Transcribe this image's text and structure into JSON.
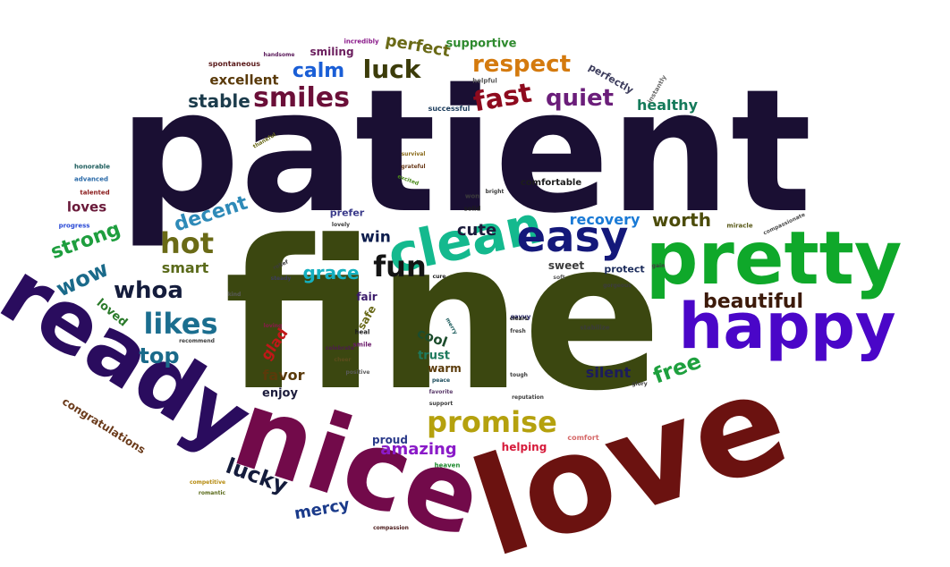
{
  "words": [
    {
      "text": "patient",
      "color": "#1a0f33"
    },
    {
      "text": "fine",
      "color": "#3b4710"
    },
    {
      "text": "love",
      "color": "#6b1210"
    },
    {
      "text": "nice",
      "color": "#720a4a"
    },
    {
      "text": "ready",
      "color": "#2a0c5e"
    },
    {
      "text": "pretty",
      "color": "#0fa82a"
    },
    {
      "text": "happy",
      "color": "#4a06c8"
    },
    {
      "text": "clean",
      "color": "#14b98e"
    },
    {
      "text": "easy",
      "color": "#14187a"
    },
    {
      "text": "fun",
      "color": "#141414"
    },
    {
      "text": "hot",
      "color": "#6a6a16"
    },
    {
      "text": "likes",
      "color": "#1b6e8f"
    },
    {
      "text": "whoa",
      "color": "#141c3c"
    },
    {
      "text": "promise",
      "color": "#b5a10e"
    },
    {
      "text": "smiles",
      "color": "#6b0f38"
    },
    {
      "text": "fast",
      "color": "#8e0a1e"
    },
    {
      "text": "quiet",
      "color": "#6b1e7a"
    },
    {
      "text": "respect",
      "color": "#d47a0e"
    },
    {
      "text": "luck",
      "color": "#3c3c0a"
    },
    {
      "text": "calm",
      "color": "#1a5ed6"
    },
    {
      "text": "perfect",
      "color": "#6a6a16"
    },
    {
      "text": "supportive",
      "color": "#2e8a2e"
    },
    {
      "text": "excellent",
      "color": "#5a3a0a"
    },
    {
      "text": "stable",
      "color": "#1c3c4c"
    },
    {
      "text": "smiling",
      "color": "#6b1e5e"
    },
    {
      "text": "healthy",
      "color": "#147a5a"
    },
    {
      "text": "perfectly",
      "color": "#3c3c5c"
    },
    {
      "text": "beautiful",
      "color": "#3c1a0a"
    },
    {
      "text": "worth",
      "color": "#4c4c0a"
    },
    {
      "text": "recovery",
      "color": "#1a7ad6"
    },
    {
      "text": "cute",
      "color": "#1c1c3c"
    },
    {
      "text": "win",
      "color": "#0c1c4c"
    },
    {
      "text": "grace",
      "color": "#14b0c0"
    },
    {
      "text": "decent",
      "color": "#2e8ab8"
    },
    {
      "text": "strong",
      "color": "#1e9e3e"
    },
    {
      "text": "wow",
      "color": "#1a6a8a"
    },
    {
      "text": "smart",
      "color": "#5a6a1a"
    },
    {
      "text": "top",
      "color": "#1a6a8a"
    },
    {
      "text": "loved",
      "color": "#2a7a2a"
    },
    {
      "text": "loves",
      "color": "#6a1a3a"
    },
    {
      "text": "free",
      "color": "#1ea03e"
    },
    {
      "text": "silent",
      "color": "#1c1c5c"
    },
    {
      "text": "lucky",
      "color": "#141c3c"
    },
    {
      "text": "mercy",
      "color": "#1a3a8a"
    },
    {
      "text": "amazing",
      "color": "#8a1ac8"
    },
    {
      "text": "glad",
      "color": "#c01818"
    },
    {
      "text": "favor",
      "color": "#5a3a0a"
    },
    {
      "text": "enjoy",
      "color": "#1c1c3c"
    },
    {
      "text": "cool",
      "color": "#1c4c2c"
    },
    {
      "text": "trust",
      "color": "#1e7a5e"
    },
    {
      "text": "warm",
      "color": "#5a3a0a"
    },
    {
      "text": "sweet",
      "color": "#3c3c3c"
    },
    {
      "text": "protect",
      "color": "#1c2c5c"
    },
    {
      "text": "congratulations",
      "color": "#6a3a1a"
    },
    {
      "text": "helping",
      "color": "#d61a3a"
    },
    {
      "text": "proud",
      "color": "#2a3a8a"
    },
    {
      "text": "comfortable",
      "color": "#1c1c1c"
    },
    {
      "text": "fair",
      "color": "#3a1a6a"
    },
    {
      "text": "safe",
      "color": "#6a6a1a"
    },
    {
      "text": "prefer",
      "color": "#3a3a8a"
    },
    {
      "text": "spontaneous",
      "color": "#5a1a1a"
    },
    {
      "text": "incredibly",
      "color": "#8a1a8a"
    },
    {
      "text": "successful",
      "color": "#1c3c5c"
    },
    {
      "text": "helpful",
      "color": "#5a5a5a"
    },
    {
      "text": "instantly",
      "color": "#6a6a6a"
    },
    {
      "text": "honorable",
      "color": "#1c5c5c"
    },
    {
      "text": "advanced",
      "color": "#2a6aa8"
    },
    {
      "text": "talented",
      "color": "#8a1a1a"
    },
    {
      "text": "progress",
      "color": "#2a4ad6"
    },
    {
      "text": "handsome",
      "color": "#5a1a5a"
    },
    {
      "text": "thankful",
      "color": "#6a6a1a"
    },
    {
      "text": "miracle",
      "color": "#5a5a1a"
    },
    {
      "text": "compassionate",
      "color": "#4a4a4a"
    },
    {
      "text": "stabilize",
      "color": "#3a3a3a"
    },
    {
      "text": "comfort",
      "color": "#d66a6a"
    },
    {
      "text": "heaven",
      "color": "#1e8a2e"
    },
    {
      "text": "competitive",
      "color": "#b58a0e"
    },
    {
      "text": "romantic",
      "color": "#5a6a1a"
    },
    {
      "text": "compassion",
      "color": "#4a1a1a"
    },
    {
      "text": "recommend",
      "color": "#3c3c3c"
    },
    {
      "text": "survival",
      "color": "#8a6a1a"
    },
    {
      "text": "grateful",
      "color": "#6a3a1a"
    },
    {
      "text": "excited",
      "color": "#4a8a1a"
    },
    {
      "text": "solid",
      "color": "#1c1c1c"
    },
    {
      "text": "won",
      "color": "#3c3c3c"
    },
    {
      "text": "savvy",
      "color": "#1c1c5c"
    },
    {
      "text": "clears",
      "color": "#1c1c1c"
    },
    {
      "text": "fresh",
      "color": "#3c3c3c"
    },
    {
      "text": "heal",
      "color": "#1c1c1c"
    },
    {
      "text": "smile",
      "color": "#6a1a6a"
    },
    {
      "text": "peace",
      "color": "#1c4c5c"
    },
    {
      "text": "favorite",
      "color": "#5a3a6a"
    },
    {
      "text": "support",
      "color": "#3c3c3c"
    },
    {
      "text": "relief",
      "color": "#3c3c3c"
    },
    {
      "text": "steady",
      "color": "#3c3c5c"
    },
    {
      "text": "cure",
      "color": "#1c1c1c"
    },
    {
      "text": "soft",
      "color": "#5a5a5a"
    },
    {
      "text": "merry",
      "color": "#1c5c5c"
    },
    {
      "text": "lovely",
      "color": "#3c3c3c"
    },
    {
      "text": "celebrate",
      "color": "#4c1c4c"
    },
    {
      "text": "cheer",
      "color": "#5c4c1c"
    },
    {
      "text": "tough",
      "color": "#3c3c3c"
    },
    {
      "text": "reputation",
      "color": "#3c3c3c"
    },
    {
      "text": "loving",
      "color": "#8a1a4a"
    },
    {
      "text": "positive",
      "color": "#5a5a5a"
    },
    {
      "text": "bright",
      "color": "#3c3c3c"
    },
    {
      "text": "gorgeous",
      "color": "#3c3c3c"
    },
    {
      "text": "glory",
      "color": "#3c3c3c"
    },
    {
      "text": "kind",
      "color": "#5a5a5a"
    },
    {
      "text": "gain",
      "color": "#3c3c3c"
    }
  ]
}
